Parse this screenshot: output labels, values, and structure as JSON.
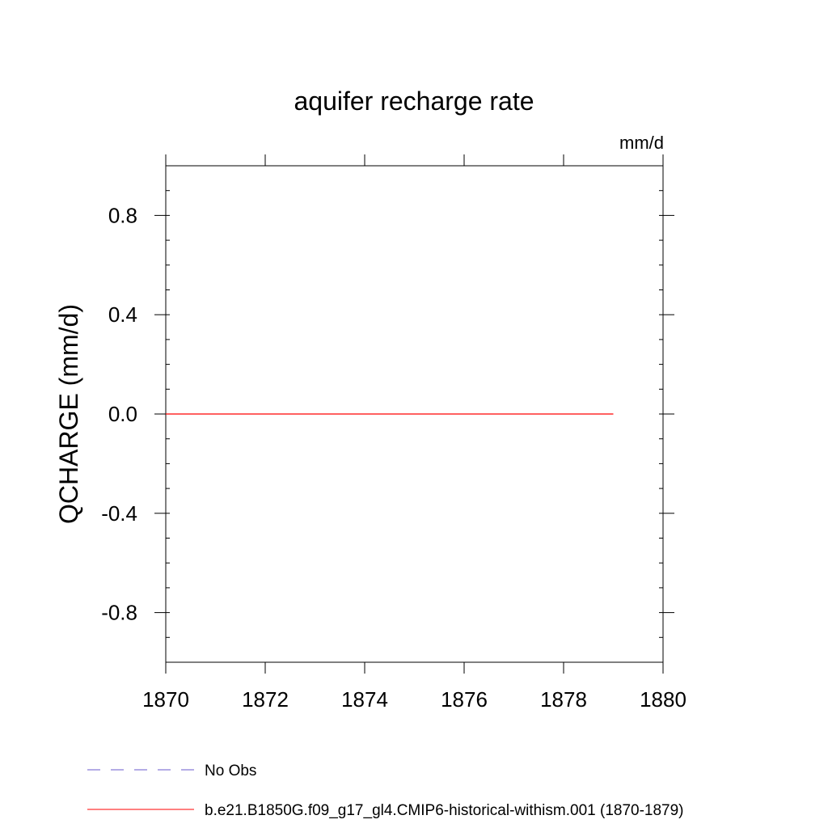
{
  "chart_data": {
    "type": "line",
    "title": "aquifer recharge rate",
    "units_label": "mm/d",
    "ylabel": "QCHARGE  (mm/d)",
    "xlabel": "",
    "xlim": [
      1870,
      1880
    ],
    "ylim": [
      -1.0,
      1.0
    ],
    "x_ticks": [
      1870,
      1872,
      1874,
      1876,
      1878,
      1880
    ],
    "x_tick_labels": [
      "1870",
      "1872",
      "1874",
      "1876",
      "1878",
      "1880"
    ],
    "y_ticks": [
      0.8,
      0.4,
      0.0,
      -0.4,
      -0.8
    ],
    "y_tick_labels": [
      "0.8",
      "0.4",
      "0.0",
      "-0.4",
      "-0.8"
    ],
    "grid": false,
    "legend_position": "bottom",
    "series": [
      {
        "name": "b.e21.B1850G.f09_g17_gl4.CMIP6-historical-withism.001 (1870-1879)",
        "color": "#ff0000",
        "dash": "solid",
        "x": [
          1870,
          1871,
          1872,
          1873,
          1874,
          1875,
          1876,
          1877,
          1878,
          1879
        ],
        "y": [
          0,
          0,
          0,
          0,
          0,
          0,
          0,
          0,
          0,
          0
        ]
      }
    ],
    "legend": [
      {
        "label": "No Obs",
        "color": "#6a5acd",
        "dash": "dashed"
      },
      {
        "label": "b.e21.B1850G.f09_g17_gl4.CMIP6-historical-withism.001 (1870-1879)",
        "color": "#ff0000",
        "dash": "solid"
      }
    ]
  }
}
